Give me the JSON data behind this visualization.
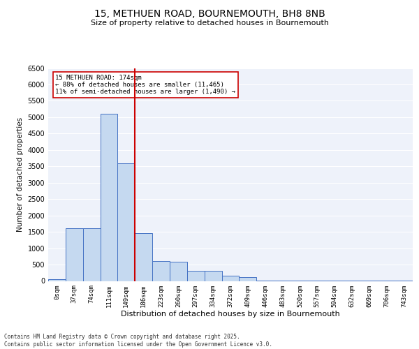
{
  "title1": "15, METHUEN ROAD, BOURNEMOUTH, BH8 8NB",
  "title2": "Size of property relative to detached houses in Bournemouth",
  "xlabel": "Distribution of detached houses by size in Bournemouth",
  "ylabel": "Number of detached properties",
  "categories": [
    "0sqm",
    "37sqm",
    "74sqm",
    "111sqm",
    "149sqm",
    "186sqm",
    "223sqm",
    "260sqm",
    "297sqm",
    "334sqm",
    "372sqm",
    "409sqm",
    "446sqm",
    "483sqm",
    "520sqm",
    "557sqm",
    "594sqm",
    "632sqm",
    "669sqm",
    "706sqm",
    "743sqm"
  ],
  "values": [
    50,
    1600,
    1600,
    5100,
    3600,
    1450,
    600,
    580,
    300,
    300,
    150,
    120,
    5,
    5,
    5,
    5,
    5,
    5,
    5,
    5,
    5
  ],
  "bar_color": "#c5d9f0",
  "bar_edge_color": "#4472c4",
  "ylim": [
    0,
    6500
  ],
  "yticks": [
    0,
    500,
    1000,
    1500,
    2000,
    2500,
    3000,
    3500,
    4000,
    4500,
    5000,
    5500,
    6000,
    6500
  ],
  "vline_bin_index": 5,
  "vline_color": "#cc0000",
  "annotation_text_line1": "15 METHUEN ROAD: 174sqm",
  "annotation_text_line2": "← 88% of detached houses are smaller (11,465)",
  "annotation_text_line3": "11% of semi-detached houses are larger (1,490) →",
  "bg_color": "#eef2fa",
  "grid_color": "#ffffff",
  "footer1": "Contains HM Land Registry data © Crown copyright and database right 2025.",
  "footer2": "Contains public sector information licensed under the Open Government Licence v3.0."
}
